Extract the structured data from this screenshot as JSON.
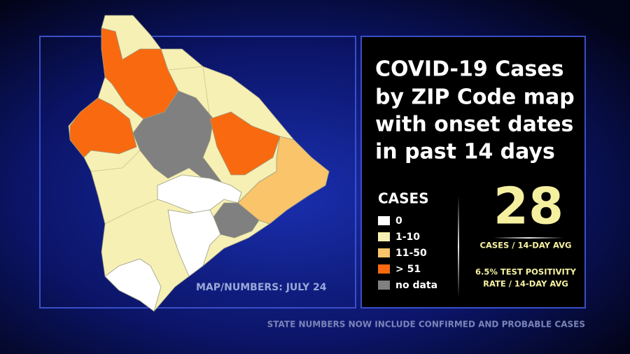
{
  "title": {
    "lines": [
      "COVID-19 Cases",
      "by ZIP Code map",
      "with onset dates",
      "in past 14 days"
    ]
  },
  "legend": {
    "title": "CASES",
    "items": [
      {
        "label": "0",
        "color": "#ffffff"
      },
      {
        "label": "1-10",
        "color": "#f7f0b5"
      },
      {
        "label": "11-50",
        "color": "#f9c46a"
      },
      {
        "label": "> 51",
        "color": "#f96a10"
      },
      {
        "label": "no data",
        "color": "#808080"
      }
    ]
  },
  "cases_avg": {
    "value": 28,
    "label": "CASES / 14-DAY AVG"
  },
  "positivity": {
    "lines": [
      "6.5% TEST POSITIVITY",
      "RATE / 14-DAY AVG"
    ]
  },
  "map_note": "MAP/NUMBERS: JULY 24",
  "footer": "STATE NUMBERS NOW INCLUDE CONFIRMED AND PROBABLE CASES"
}
